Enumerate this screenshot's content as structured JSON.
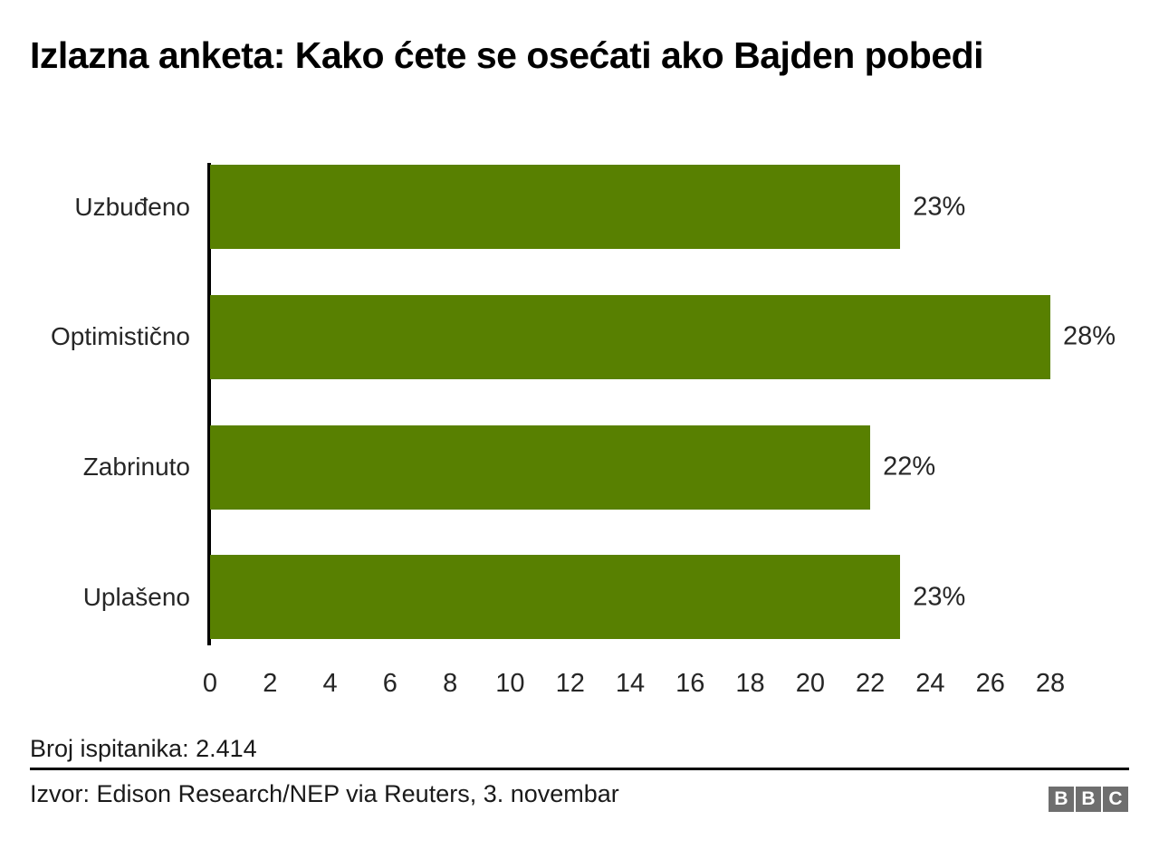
{
  "title": "Izlazna anketa: Kako ćete se osećati ako Bajden pobedi",
  "chart_data": {
    "type": "bar",
    "orientation": "horizontal",
    "categories": [
      "Uzbuđeno",
      "Optimistično",
      "Zabrinuto",
      "Uplašeno"
    ],
    "values": [
      23,
      28,
      22,
      23
    ],
    "value_labels": [
      "23%",
      "28%",
      "22%",
      "23%"
    ],
    "x_ticks": [
      0,
      2,
      4,
      6,
      8,
      10,
      12,
      14,
      16,
      18,
      20,
      22,
      24,
      26,
      28
    ],
    "xlim": [
      0,
      28
    ],
    "xlabel": "",
    "ylabel": "",
    "grid": false,
    "legend": false,
    "bar_color": "#588001",
    "axis_color": "#000000",
    "text_color": "#262626"
  },
  "footer": {
    "respondents": "Broj ispitanika: 2.414",
    "source": "Izvor: Edison Research/NEP via Reuters, 3. novembar",
    "logo_letters": [
      "B",
      "B",
      "C"
    ],
    "logo_color": "#6e6e6e"
  }
}
